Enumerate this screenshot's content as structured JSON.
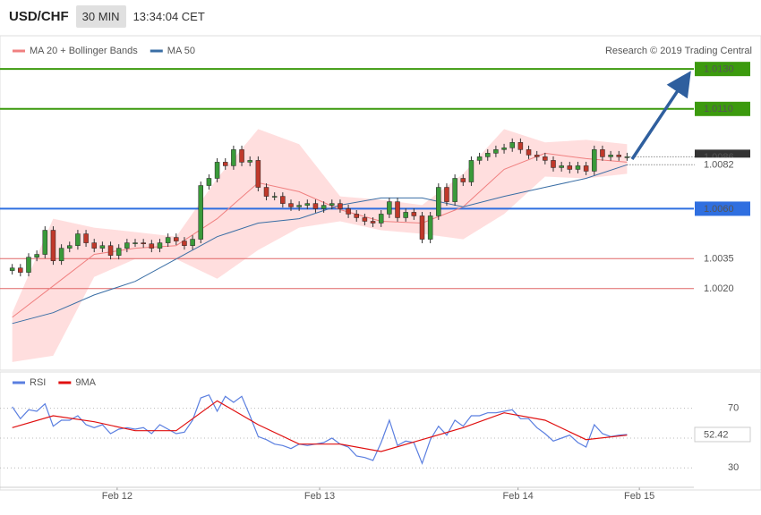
{
  "header": {
    "symbol": "USD/CHF",
    "interval": "30 MIN",
    "time": "13:34:04 CET"
  },
  "chart_data": [
    {
      "type": "candlestick",
      "source": "Research © 2019 Trading Central",
      "xlim": [
        -0.4,
        82.6
      ],
      "ylim": [
        0.998,
        1.0135
      ],
      "up_color": "#3a9a3a",
      "down_color": "#c0392b",
      "open": [
        1.0029,
        1.00303,
        1.00281,
        1.00357,
        1.00371,
        1.00492,
        1.00339,
        1.00402,
        1.00415,
        1.00474,
        1.00429,
        1.00402,
        1.00415,
        1.00366,
        1.00402,
        1.00429,
        1.00429,
        1.00424,
        1.00402,
        1.00429,
        1.00456,
        1.00438,
        1.00415,
        1.00447,
        1.00716,
        1.00752,
        1.00833,
        1.00815,
        1.00896,
        1.00833,
        1.00842,
        1.00707,
        1.00662,
        1.00662,
        1.00626,
        1.00609,
        1.00617,
        1.00626,
        1.006,
        1.00617,
        1.00626,
        1.006,
        1.00573,
        1.00555,
        1.00537,
        1.00528,
        1.00573,
        1.00635,
        1.00555,
        1.00582,
        1.00564,
        1.00447,
        1.00564,
        1.00707,
        1.00635,
        1.00752,
        1.00734,
        1.00842,
        1.0086,
        1.00878,
        1.00896,
        1.00905,
        1.00932,
        1.00896,
        1.00869,
        1.0086,
        1.00842,
        1.00806,
        1.00815,
        1.00797,
        1.00815,
        1.00788,
        1.00896,
        1.0086,
        1.00869,
        1.0086
      ],
      "high": [
        1.00323,
        1.00323,
        1.00377,
        1.00391,
        1.00512,
        1.00512,
        1.00422,
        1.00435,
        1.00494,
        1.00494,
        1.00449,
        1.00435,
        1.00435,
        1.00422,
        1.00449,
        1.00449,
        1.00449,
        1.00444,
        1.00449,
        1.00476,
        1.00476,
        1.00458,
        1.00467,
        1.00736,
        1.00772,
        1.00853,
        1.00853,
        1.00916,
        1.00916,
        1.00862,
        1.00862,
        1.00727,
        1.00682,
        1.00682,
        1.00646,
        1.00637,
        1.00646,
        1.00646,
        1.00637,
        1.00646,
        1.00646,
        1.0062,
        1.00593,
        1.00575,
        1.00557,
        1.00593,
        1.00655,
        1.00655,
        1.00602,
        1.00602,
        1.00584,
        1.00584,
        1.00727,
        1.00727,
        1.00772,
        1.00772,
        1.00862,
        1.0088,
        1.00898,
        1.00916,
        1.00925,
        1.00952,
        1.00952,
        1.00916,
        1.00889,
        1.0088,
        1.00862,
        1.00835,
        1.00835,
        1.00835,
        1.00835,
        1.00916,
        1.00916,
        1.00889,
        1.00889,
        1.0088
      ],
      "low": [
        1.0027,
        1.00261,
        1.00261,
        1.00337,
        1.00351,
        1.00319,
        1.00319,
        1.00382,
        1.00395,
        1.00409,
        1.00382,
        1.00382,
        1.00346,
        1.00346,
        1.00382,
        1.00409,
        1.00404,
        1.00382,
        1.00382,
        1.00409,
        1.00418,
        1.00395,
        1.00395,
        1.00427,
        1.00696,
        1.00732,
        1.00795,
        1.00795,
        1.00813,
        1.00813,
        1.00687,
        1.00642,
        1.00642,
        1.00606,
        1.00589,
        1.00589,
        1.00597,
        1.0058,
        1.0058,
        1.00597,
        1.0058,
        1.00553,
        1.00535,
        1.00517,
        1.00508,
        1.00508,
        1.00553,
        1.00535,
        1.00535,
        1.00544,
        1.00427,
        1.00427,
        1.00544,
        1.00615,
        1.00615,
        1.00714,
        1.00714,
        1.00822,
        1.0084,
        1.00858,
        1.00876,
        1.00885,
        1.00876,
        1.00849,
        1.0084,
        1.00822,
        1.00786,
        1.00786,
        1.00777,
        1.00777,
        1.00768,
        1.00768,
        1.0084,
        1.0084,
        1.0084,
        1.0084
      ],
      "close": [
        1.00303,
        1.00281,
        1.00357,
        1.00371,
        1.00492,
        1.00339,
        1.00402,
        1.00415,
        1.00474,
        1.00429,
        1.00402,
        1.00415,
        1.00366,
        1.00402,
        1.00429,
        1.00429,
        1.00424,
        1.00402,
        1.00429,
        1.00456,
        1.00438,
        1.00415,
        1.00447,
        1.00716,
        1.00752,
        1.00833,
        1.00815,
        1.00896,
        1.00833,
        1.00842,
        1.00707,
        1.00662,
        1.00662,
        1.00626,
        1.00609,
        1.00617,
        1.00626,
        1.006,
        1.00617,
        1.00626,
        1.006,
        1.00573,
        1.00555,
        1.00537,
        1.00528,
        1.00573,
        1.00635,
        1.00555,
        1.00582,
        1.00564,
        1.00447,
        1.00564,
        1.00707,
        1.00635,
        1.00752,
        1.00734,
        1.00842,
        1.0086,
        1.00878,
        1.00896,
        1.00905,
        1.00932,
        1.00896,
        1.00869,
        1.0086,
        1.00842,
        1.00806,
        1.00815,
        1.00797,
        1.00815,
        1.00788,
        1.00896,
        1.0086,
        1.00869,
        1.0086,
        1.0086
      ],
      "bands": {
        "color": "#ffd6d6",
        "x": [
          0,
          5,
          10,
          15,
          20,
          25,
          30,
          35,
          40,
          45,
          50,
          55,
          60,
          65,
          70,
          75
        ],
        "upper": [
          1.00079,
          1.0055,
          1.00505,
          1.00483,
          1.0046,
          1.00752,
          1.00999,
          1.00923,
          1.00662,
          1.00645,
          1.00618,
          1.00775,
          1.00999,
          1.00932,
          1.00945,
          1.00923
        ],
        "lower": [
          0.99832,
          0.99863,
          1.00258,
          1.00348,
          1.00348,
          1.00249,
          1.00393,
          1.00505,
          1.00537,
          1.00492,
          1.00474,
          1.00447,
          1.00573,
          1.00761,
          1.00752,
          1.00775
        ]
      },
      "series": [
        {
          "name": "MA 20 + Bollinger Bands",
          "color": "#f08080",
          "x": [
            0,
            5,
            10,
            15,
            20,
            25,
            30,
            35,
            40,
            45,
            50,
            55,
            60,
            65,
            70,
            75
          ],
          "values": [
            1.00056,
            1.00213,
            1.00371,
            1.00402,
            1.00415,
            1.0055,
            1.0073,
            1.00685,
            1.00595,
            1.00537,
            1.00528,
            1.00609,
            1.00797,
            1.00878,
            1.00851,
            1.00833
          ]
        },
        {
          "name": "MA 50",
          "color": "#3a6ea5",
          "x": [
            0,
            5,
            10,
            15,
            20,
            25,
            30,
            35,
            40,
            45,
            50,
            55,
            60,
            65,
            70,
            75
          ],
          "values": [
            1.00025,
            1.00079,
            1.00168,
            1.00236,
            1.00348,
            1.0046,
            1.00528,
            1.0055,
            1.00618,
            1.00654,
            1.00654,
            1.00609,
            1.00662,
            1.00707,
            1.00752,
            1.0082
          ]
        }
      ],
      "levels": [
        {
          "value": 1.013,
          "label": "1.0130",
          "color": "#3c9a0e",
          "boxed": true
        },
        {
          "value": 1.011,
          "label": "1.0110",
          "color": "#3c9a0e",
          "boxed": true
        },
        {
          "value": 1.006,
          "label": "1.0060",
          "color": "#2f6fe0",
          "boxed": true
        },
        {
          "value": 1.0035,
          "color": "#e06666",
          "boxed": false
        },
        {
          "value": 1.002,
          "label": "1.0020",
          "color": "#e06666",
          "boxed": false
        }
      ],
      "current": [
        {
          "value": 1.0086,
          "color": "#333333",
          "boxed": true
        },
        {
          "value": 1.0082,
          "color": "#3a6ea5",
          "boxed": false
        }
      ]
    },
    {
      "type": "line",
      "xlim": [
        -0.4,
        82.6
      ],
      "ylim": [
        17,
        89
      ],
      "yticks": [
        30,
        50,
        70
      ],
      "xticks": [
        {
          "value": 12.8,
          "label": "Feb 12"
        },
        {
          "value": 37.5,
          "label": "Feb 13"
        },
        {
          "value": 61.7,
          "label": "Feb 14"
        },
        {
          "value": 76.5,
          "label": "Feb 15"
        }
      ],
      "series": [
        {
          "name": "RSI",
          "color": "#5b7fe0",
          "values": [
            71,
            63,
            69,
            68,
            73,
            58,
            62,
            62,
            65,
            59,
            57,
            59,
            53,
            56,
            57,
            56,
            57,
            53,
            59,
            56,
            53,
            54,
            62,
            77,
            79,
            68,
            78,
            74,
            78,
            65,
            51,
            49,
            46,
            45,
            43,
            46,
            45,
            46,
            47,
            50,
            46,
            44,
            38,
            37,
            35,
            47,
            62,
            45,
            48,
            47,
            33,
            49,
            58,
            52,
            62,
            58,
            65,
            65,
            67,
            67,
            68,
            69,
            63,
            63,
            57,
            53,
            48,
            50,
            52,
            47,
            44,
            59,
            53,
            51,
            52,
            52.42
          ]
        },
        {
          "name": "9MA",
          "color": "#e01010",
          "x": [
            0,
            5,
            10,
            15,
            20,
            25,
            30,
            35,
            40,
            45,
            50,
            55,
            60,
            65,
            70,
            75
          ],
          "values": [
            57,
            65,
            61,
            55,
            55,
            75,
            59,
            46,
            46,
            41,
            49,
            57,
            67,
            62,
            49,
            52
          ]
        }
      ]
    }
  ]
}
